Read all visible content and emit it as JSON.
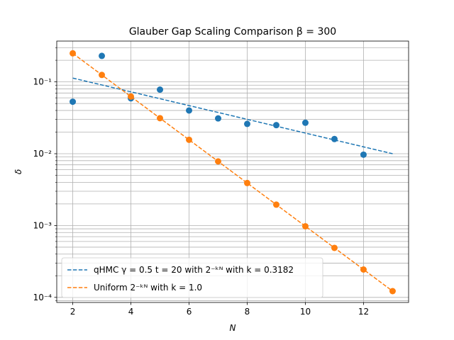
{
  "chart_data": {
    "type": "scatter",
    "title": "Glauber Gap Scaling Comparison β = 300",
    "xlabel": "N",
    "ylabel": "δ",
    "xlim": [
      1.45,
      13.55
    ],
    "ylim": [
      8.49e-05,
      0.37
    ],
    "yscale": "log",
    "xticks": [
      2,
      4,
      6,
      8,
      10,
      12
    ],
    "xtick_labels": [
      "2",
      "4",
      "6",
      "8",
      "10",
      "12"
    ],
    "yticks": [
      0.0001,
      0.001,
      0.01,
      0.1
    ],
    "ytick_labels": [
      "10⁻⁴",
      "10⁻³",
      "10⁻²",
      "10⁻¹"
    ],
    "grid": true,
    "grid_which": "both",
    "legend_position": "lower-left",
    "series": [
      {
        "color": "#1f77b4",
        "kind": "points",
        "x": [
          2,
          3,
          4,
          5,
          6,
          7,
          8,
          9,
          10,
          11,
          12
        ],
        "y": [
          0.053,
          0.23,
          0.059,
          0.078,
          0.04,
          0.031,
          0.026,
          0.025,
          0.027,
          0.016,
          0.0097
        ]
      },
      {
        "color": "#ff7f0e",
        "kind": "points",
        "x": [
          2,
          3,
          4,
          5,
          6,
          7,
          8,
          9,
          10,
          11,
          12,
          13
        ],
        "y": [
          0.25,
          0.125,
          0.0625,
          0.03125,
          0.015625,
          0.0078125,
          0.00390625,
          0.001953,
          0.0009766,
          0.0004883,
          0.0002441,
          0.0001221
        ]
      },
      {
        "name": "qHMC γ = 0.5  t = 20 with 2^(−kN) with k = 0.3182",
        "color": "#1f77b4",
        "kind": "dashed-line",
        "x": [
          2,
          13
        ],
        "y": [
          0.113,
          0.01
        ]
      },
      {
        "name": "Uniform 2^(−kN) with k = 1.0",
        "color": "#ff7f0e",
        "kind": "dashed-line",
        "x": [
          2,
          13
        ],
        "y": [
          0.25,
          0.0001221
        ]
      }
    ],
    "legend": [
      {
        "label": "qHMC γ = 0.5  t = 20 with 2⁻ᵏᴺ with k = 0.3182",
        "color": "#1f77b4"
      },
      {
        "label": "Uniform 2⁻ᵏᴺ with k = 1.0",
        "color": "#ff7f0e"
      }
    ]
  }
}
